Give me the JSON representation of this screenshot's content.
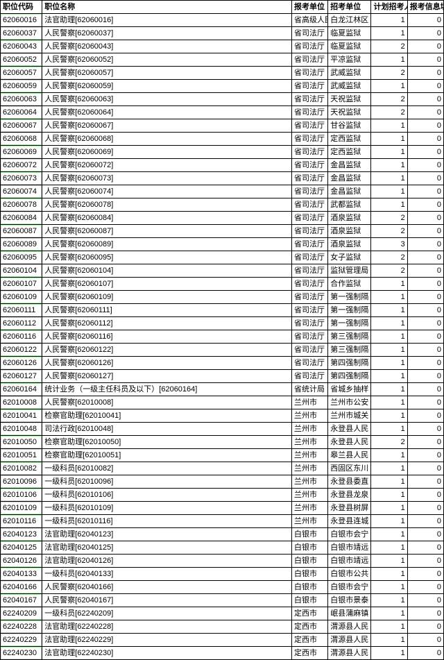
{
  "headers": {
    "code": "职位代码",
    "name": "职位名称",
    "apply_unit": "报考单位（",
    "recruit_unit": "招考单位",
    "plan": "计划招考人",
    "info": "报考信息填"
  },
  "style": {
    "font_size": 11,
    "border_color": "#000000",
    "bg_color": "#ffffff",
    "code_outline": "rgba(0,160,0,0.25)"
  },
  "columns": [
    "code",
    "name",
    "apply_unit",
    "recruit_unit",
    "plan",
    "info"
  ],
  "rows": [
    {
      "code": "62060016",
      "name": "法官助理[62060016]",
      "apply_unit": "省高级人民",
      "recruit_unit": "白龙江林区",
      "plan": "1",
      "info": "0"
    },
    {
      "code": "62060037",
      "name": "人民警察[62060037]",
      "apply_unit": "省司法厅",
      "recruit_unit": "临夏监狱",
      "plan": "1",
      "info": "0"
    },
    {
      "code": "62060043",
      "name": "人民警察[62060043]",
      "apply_unit": "省司法厅",
      "recruit_unit": "临夏监狱",
      "plan": "2",
      "info": "0"
    },
    {
      "code": "62060052",
      "name": "人民警察[62060052]",
      "apply_unit": "省司法厅",
      "recruit_unit": "平凉监狱",
      "plan": "1",
      "info": "0"
    },
    {
      "code": "62060057",
      "name": "人民警察[62060057]",
      "apply_unit": "省司法厅",
      "recruit_unit": "武威监狱",
      "plan": "2",
      "info": "0"
    },
    {
      "code": "62060059",
      "name": "人民警察[62060059]",
      "apply_unit": "省司法厅",
      "recruit_unit": "武威监狱",
      "plan": "1",
      "info": "0"
    },
    {
      "code": "62060063",
      "name": "人民警察[62060063]",
      "apply_unit": "省司法厅",
      "recruit_unit": "天祝监狱",
      "plan": "2",
      "info": "0"
    },
    {
      "code": "62060064",
      "name": "人民警察[62060064]",
      "apply_unit": "省司法厅",
      "recruit_unit": "天祝监狱",
      "plan": "2",
      "info": "0"
    },
    {
      "code": "62060067",
      "name": "人民警察[62060067]",
      "apply_unit": "省司法厅",
      "recruit_unit": "甘谷监狱",
      "plan": "1",
      "info": "0"
    },
    {
      "code": "62060068",
      "name": "人民警察[62060068]",
      "apply_unit": "省司法厅",
      "recruit_unit": "定西监狱",
      "plan": "1",
      "info": "0"
    },
    {
      "code": "62060069",
      "name": "人民警察[62060069]",
      "apply_unit": "省司法厅",
      "recruit_unit": "定西监狱",
      "plan": "1",
      "info": "0"
    },
    {
      "code": "62060072",
      "name": "人民警察[62060072]",
      "apply_unit": "省司法厅",
      "recruit_unit": "金昌监狱",
      "plan": "1",
      "info": "0"
    },
    {
      "code": "62060073",
      "name": "人民警察[62060073]",
      "apply_unit": "省司法厅",
      "recruit_unit": "金昌监狱",
      "plan": "1",
      "info": "0"
    },
    {
      "code": "62060074",
      "name": "人民警察[62060074]",
      "apply_unit": "省司法厅",
      "recruit_unit": "金昌监狱",
      "plan": "1",
      "info": "0"
    },
    {
      "code": "62060078",
      "name": "人民警察[62060078]",
      "apply_unit": "省司法厅",
      "recruit_unit": "武都监狱",
      "plan": "1",
      "info": "0"
    },
    {
      "code": "62060084",
      "name": "人民警察[62060084]",
      "apply_unit": "省司法厅",
      "recruit_unit": "酒泉监狱",
      "plan": "2",
      "info": "0"
    },
    {
      "code": "62060087",
      "name": "人民警察[62060087]",
      "apply_unit": "省司法厅",
      "recruit_unit": "酒泉监狱",
      "plan": "2",
      "info": "0"
    },
    {
      "code": "62060089",
      "name": "人民警察[62060089]",
      "apply_unit": "省司法厅",
      "recruit_unit": "酒泉监狱",
      "plan": "3",
      "info": "0"
    },
    {
      "code": "62060095",
      "name": "人民警察[62060095]",
      "apply_unit": "省司法厅",
      "recruit_unit": "女子监狱",
      "plan": "2",
      "info": "0"
    },
    {
      "code": "62060104",
      "name": "人民警察[62060104]",
      "apply_unit": "省司法厅",
      "recruit_unit": "监狱管理局",
      "plan": "2",
      "info": "0"
    },
    {
      "code": "62060107",
      "name": "人民警察[62060107]",
      "apply_unit": "省司法厅",
      "recruit_unit": "合作监狱",
      "plan": "1",
      "info": "0"
    },
    {
      "code": "62060109",
      "name": "人民警察[62060109]",
      "apply_unit": "省司法厅",
      "recruit_unit": "第一强制隔",
      "plan": "1",
      "info": "0"
    },
    {
      "code": "62060111",
      "name": "人民警察[62060111]",
      "apply_unit": "省司法厅",
      "recruit_unit": "第一强制隔",
      "plan": "1",
      "info": "0"
    },
    {
      "code": "62060112",
      "name": "人民警察[62060112]",
      "apply_unit": "省司法厅",
      "recruit_unit": "第一强制隔",
      "plan": "1",
      "info": "0"
    },
    {
      "code": "62060116",
      "name": "人民警察[62060116]",
      "apply_unit": "省司法厅",
      "recruit_unit": "第三强制隔",
      "plan": "1",
      "info": "0"
    },
    {
      "code": "62060122",
      "name": "人民警察[62060122]",
      "apply_unit": "省司法厅",
      "recruit_unit": "第三强制隔",
      "plan": "1",
      "info": "0"
    },
    {
      "code": "62060126",
      "name": "人民警察[62060126]",
      "apply_unit": "省司法厅",
      "recruit_unit": "第四强制隔",
      "plan": "1",
      "info": "0"
    },
    {
      "code": "62060127",
      "name": "人民警察[62060127]",
      "apply_unit": "省司法厅",
      "recruit_unit": "第四强制隔",
      "plan": "1",
      "info": "0"
    },
    {
      "code": "62060164",
      "name": "统计业务（一级主任科员及以下）[62060164]",
      "apply_unit": "省统计局",
      "recruit_unit": "省城乡抽样",
      "plan": "1",
      "info": "0"
    },
    {
      "code": "62010008",
      "name": "人民警察[62010008]",
      "apply_unit": "兰州市",
      "recruit_unit": "兰州市公安",
      "plan": "1",
      "info": "0"
    },
    {
      "code": "62010041",
      "name": "检察官助理[62010041]",
      "apply_unit": "兰州市",
      "recruit_unit": "兰州市城关",
      "plan": "1",
      "info": "0"
    },
    {
      "code": "62010048",
      "name": "司法行政[62010048]",
      "apply_unit": "兰州市",
      "recruit_unit": "永登县人民",
      "plan": "1",
      "info": "0"
    },
    {
      "code": "62010050",
      "name": "检察官助理[62010050]",
      "apply_unit": "兰州市",
      "recruit_unit": "永登县人民",
      "plan": "2",
      "info": "0"
    },
    {
      "code": "62010051",
      "name": "检察官助理[62010051]",
      "apply_unit": "兰州市",
      "recruit_unit": "皋兰县人民",
      "plan": "1",
      "info": "0"
    },
    {
      "code": "62010082",
      "name": "一级科员[62010082]",
      "apply_unit": "兰州市",
      "recruit_unit": "西固区东川",
      "plan": "1",
      "info": "0"
    },
    {
      "code": "62010096",
      "name": "一级科员[62010096]",
      "apply_unit": "兰州市",
      "recruit_unit": "永登县委直",
      "plan": "1",
      "info": "0"
    },
    {
      "code": "62010106",
      "name": "一级科员[62010106]",
      "apply_unit": "兰州市",
      "recruit_unit": "永登县龙泉",
      "plan": "1",
      "info": "0"
    },
    {
      "code": "62010109",
      "name": "一级科员[62010109]",
      "apply_unit": "兰州市",
      "recruit_unit": "永登县树屏",
      "plan": "1",
      "info": "0"
    },
    {
      "code": "62010116",
      "name": "一级科员[62010116]",
      "apply_unit": "兰州市",
      "recruit_unit": "永登县连城",
      "plan": "1",
      "info": "0"
    },
    {
      "code": "62040123",
      "name": "法官助理[62040123]",
      "apply_unit": "白银市",
      "recruit_unit": "白银市会宁",
      "plan": "1",
      "info": "0"
    },
    {
      "code": "62040125",
      "name": "法官助理[62040125]",
      "apply_unit": "白银市",
      "recruit_unit": "白银市靖远",
      "plan": "1",
      "info": "0"
    },
    {
      "code": "62040126",
      "name": "法官助理[62040126]",
      "apply_unit": "白银市",
      "recruit_unit": "白银市靖远",
      "plan": "1",
      "info": "0"
    },
    {
      "code": "62040133",
      "name": "一级科员[62040133]",
      "apply_unit": "白银市",
      "recruit_unit": "白银市公共",
      "plan": "1",
      "info": "0"
    },
    {
      "code": "62040166",
      "name": "人民警察[62040166]",
      "apply_unit": "白银市",
      "recruit_unit": "白银市会宁",
      "plan": "1",
      "info": "0"
    },
    {
      "code": "62040167",
      "name": "人民警察[62040167]",
      "apply_unit": "白银市",
      "recruit_unit": "白银市景泰",
      "plan": "1",
      "info": "0"
    },
    {
      "code": "62240209",
      "name": "一级科员[62240209]",
      "apply_unit": "定西市",
      "recruit_unit": "岷县蒲麻镇",
      "plan": "1",
      "info": "0"
    },
    {
      "code": "62240228",
      "name": "法官助理[62240228]",
      "apply_unit": "定西市",
      "recruit_unit": "渭源县人民",
      "plan": "1",
      "info": "0"
    },
    {
      "code": "62240229",
      "name": "法官助理[62240229]",
      "apply_unit": "定西市",
      "recruit_unit": "渭源县人民",
      "plan": "1",
      "info": "0"
    },
    {
      "code": "62240230",
      "name": "法官助理[62240230]",
      "apply_unit": "定西市",
      "recruit_unit": "渭源县人民",
      "plan": "1",
      "info": "0"
    }
  ]
}
